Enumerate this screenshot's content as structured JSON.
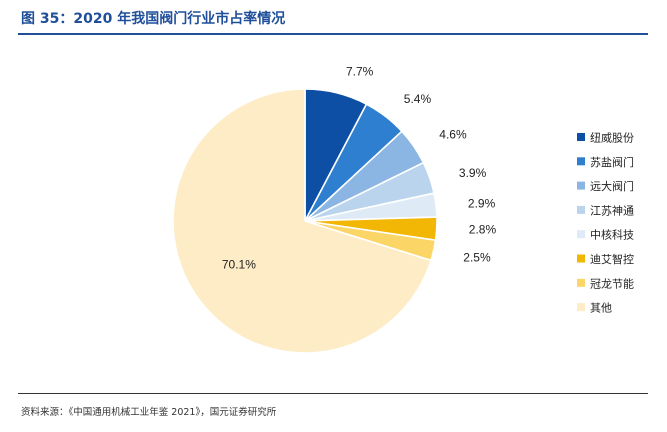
{
  "header": {
    "title": "图 35：2020 年我国阀门行业市占率情况"
  },
  "footer": {
    "source": "资料来源：《中国通用机械工业年鉴 2021》，国元证券研究所"
  },
  "colors": {
    "title": "#1f4e9a",
    "text": "#333333"
  },
  "chart_data": {
    "type": "pie",
    "title": "",
    "unit": "%",
    "start": "12 o'clock",
    "direction": "clockwise",
    "legend_position": "right",
    "slices": [
      {
        "name": "纽威股份",
        "value": 7.7,
        "label": "7.7%",
        "color": "#0d4fa5"
      },
      {
        "name": "苏盐阀门",
        "value": 5.4,
        "label": "5.4%",
        "color": "#2f7fd0"
      },
      {
        "name": "远大阀门",
        "value": 4.6,
        "label": "4.6%",
        "color": "#8bb6e3"
      },
      {
        "name": "江苏神通",
        "value": 3.9,
        "label": "3.9%",
        "color": "#bad4ee"
      },
      {
        "name": "中核科技",
        "value": 2.9,
        "label": "2.9%",
        "color": "#dfeaf7"
      },
      {
        "name": "迪艾智控",
        "value": 2.8,
        "label": "2.8%",
        "color": "#f2b705"
      },
      {
        "name": "冠龙节能",
        "value": 2.5,
        "label": "2.5%",
        "color": "#fbd667"
      },
      {
        "name": "其他",
        "value": 70.1,
        "label": "70.1%",
        "color": "#fdecc6"
      }
    ]
  }
}
